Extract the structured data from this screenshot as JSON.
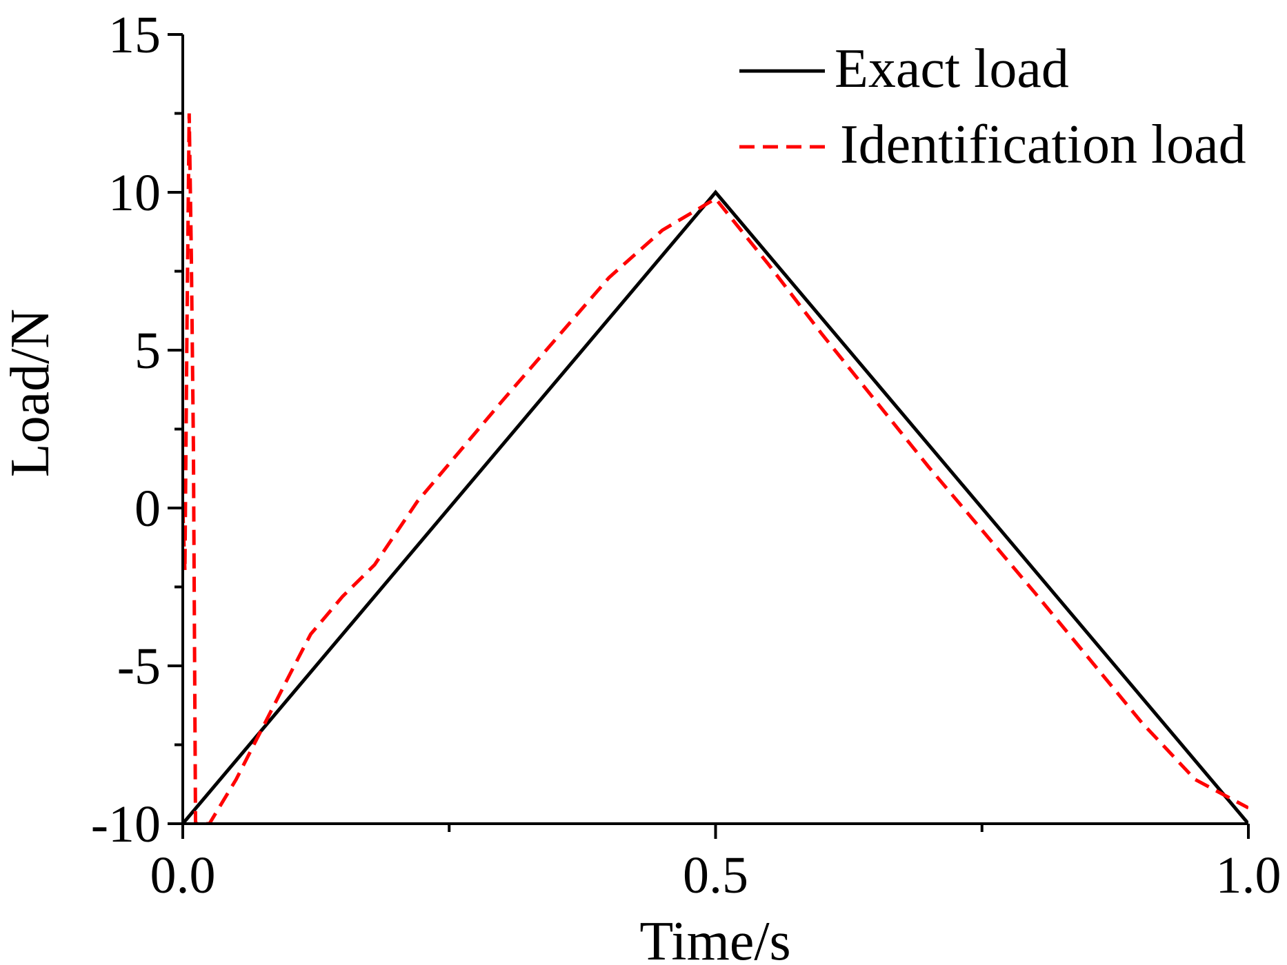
{
  "chart_data": {
    "type": "line",
    "title": "",
    "xlabel": "Time/s",
    "ylabel": "Load/N",
    "xlim": [
      0,
      1
    ],
    "ylim": [
      -10,
      15
    ],
    "x_ticks": [
      0.0,
      0.5,
      1.0
    ],
    "x_tick_labels": [
      "0.0",
      "0.5",
      "1.0"
    ],
    "x_minor_ticks": [
      0.25,
      0.75
    ],
    "y_ticks": [
      -10,
      -5,
      0,
      5,
      10,
      15
    ],
    "y_tick_labels": [
      "-10",
      "-5",
      "0",
      "5",
      "10",
      "15"
    ],
    "y_minor_ticks": [
      -7.5,
      -2.5,
      2.5,
      7.5,
      12.5
    ],
    "grid": false,
    "legend_position": "top-right",
    "series": [
      {
        "name": "Exact load",
        "color": "#000000",
        "style": "solid",
        "x": [
          0.0,
          0.5,
          1.0
        ],
        "y": [
          -10,
          10,
          -10
        ]
      },
      {
        "name": "Identification load",
        "color": "#ff0000",
        "style": "dashed",
        "x": [
          0.0,
          0.002,
          0.004,
          0.006,
          0.008,
          0.01,
          0.012,
          0.025,
          0.05,
          0.1,
          0.12,
          0.15,
          0.18,
          0.22,
          0.3,
          0.4,
          0.45,
          0.5,
          0.55,
          0.6,
          0.7,
          0.8,
          0.9,
          0.95,
          1.0
        ],
        "y": [
          0.0,
          -2.0,
          6.0,
          12.5,
          8.0,
          2.0,
          -10.0,
          -10.0,
          -8.6,
          -5.3,
          -4.0,
          -2.8,
          -1.8,
          0.2,
          3.4,
          7.3,
          8.8,
          9.8,
          7.7,
          5.5,
          1.3,
          -2.7,
          -6.8,
          -8.6,
          -9.5
        ]
      }
    ]
  }
}
